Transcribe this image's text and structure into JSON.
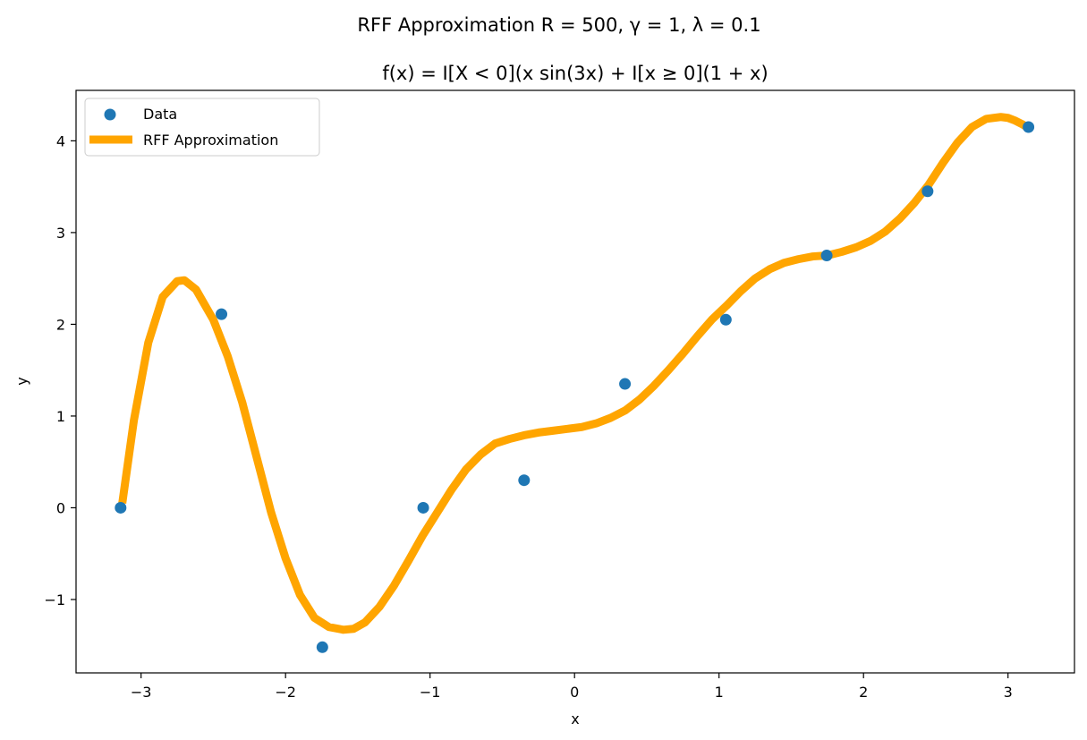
{
  "figure": {
    "suptitle": "RFF Approximation R = 500, γ = 1, λ = 0.1",
    "subtitle": "f(x) = I[X < 0](x sin(3x) + I[x ≥ 0](1 + x)"
  },
  "chart_data": {
    "type": "scatter",
    "title": "f(x) = I[X < 0](x sin(3x) + I[x ≥ 0](1 + x)",
    "xlabel": "x",
    "ylabel": "y",
    "xlim": [
      -3.45,
      3.46
    ],
    "ylim": [
      -1.8,
      4.55
    ],
    "grid": false,
    "legend_position": "top-left",
    "x_ticks": [
      -3,
      -2,
      -1,
      0,
      1,
      2,
      3
    ],
    "x_tick_labels": [
      "−3",
      "−2",
      "−1",
      "0",
      "1",
      "2",
      "3"
    ],
    "y_ticks": [
      -1,
      0,
      1,
      2,
      3,
      4
    ],
    "y_tick_labels": [
      "−1",
      "0",
      "1",
      "2",
      "3",
      "4"
    ],
    "series": [
      {
        "name": "Data",
        "kind": "scatter",
        "color": "#1f77b4",
        "x": [
          -3.1416,
          -2.4435,
          -1.7453,
          -1.0472,
          -0.3491,
          0.3491,
          1.0472,
          1.7453,
          2.4435,
          3.1416
        ],
        "y": [
          0.0,
          2.11,
          -1.52,
          0.0,
          0.3,
          1.35,
          2.05,
          2.75,
          3.45,
          4.15
        ]
      },
      {
        "name": "RFF Approximation",
        "kind": "line",
        "color": "#ffa500",
        "x": [
          -3.13,
          -3.05,
          -2.95,
          -2.85,
          -2.75,
          -2.7,
          -2.62,
          -2.5,
          -2.4,
          -2.3,
          -2.2,
          -2.1,
          -2.0,
          -1.9,
          -1.8,
          -1.7,
          -1.6,
          -1.53,
          -1.45,
          -1.35,
          -1.25,
          -1.15,
          -1.05,
          -0.95,
          -0.85,
          -0.75,
          -0.65,
          -0.55,
          -0.45,
          -0.35,
          -0.25,
          -0.15,
          -0.05,
          0.05,
          0.15,
          0.25,
          0.35,
          0.45,
          0.55,
          0.65,
          0.75,
          0.85,
          0.95,
          1.05,
          1.15,
          1.25,
          1.35,
          1.45,
          1.55,
          1.65,
          1.75,
          1.85,
          1.95,
          2.05,
          2.15,
          2.25,
          2.35,
          2.45,
          2.55,
          2.65,
          2.75,
          2.85,
          2.95,
          3.0,
          3.05,
          3.1,
          3.15
        ],
        "y": [
          0.05,
          0.95,
          1.8,
          2.3,
          2.47,
          2.48,
          2.38,
          2.05,
          1.65,
          1.15,
          0.55,
          -0.05,
          -0.55,
          -0.95,
          -1.2,
          -1.3,
          -1.33,
          -1.32,
          -1.25,
          -1.08,
          -0.85,
          -0.58,
          -0.3,
          -0.05,
          0.2,
          0.42,
          0.58,
          0.7,
          0.75,
          0.79,
          0.82,
          0.84,
          0.86,
          0.88,
          0.92,
          0.98,
          1.06,
          1.18,
          1.33,
          1.5,
          1.68,
          1.87,
          2.05,
          2.2,
          2.36,
          2.5,
          2.6,
          2.67,
          2.71,
          2.74,
          2.75,
          2.79,
          2.84,
          2.91,
          3.01,
          3.15,
          3.32,
          3.52,
          3.76,
          3.98,
          4.15,
          4.24,
          4.26,
          4.25,
          4.22,
          4.18,
          4.13
        ]
      }
    ]
  }
}
